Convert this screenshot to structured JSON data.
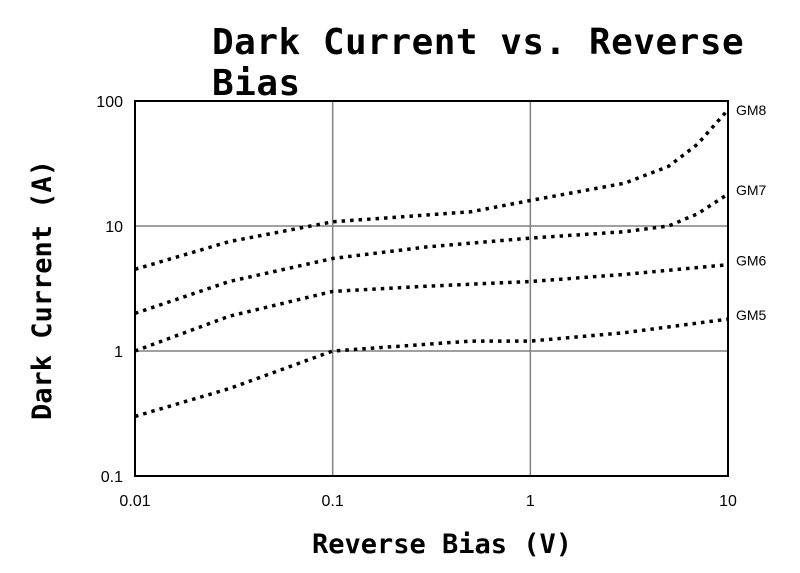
{
  "chart_data": {
    "type": "line",
    "title": "Dark Current vs. Reverse Bias",
    "xlabel": "Reverse Bias (V)",
    "ylabel": "Dark Current (A)",
    "xscale": "log",
    "yscale": "log",
    "xlim": [
      0.01,
      10
    ],
    "ylim": [
      0.1,
      100
    ],
    "grid": true,
    "line_style": "dotted",
    "x_ticks": [
      "0.01",
      "0.1",
      "1",
      "10"
    ],
    "y_ticks": [
      "0.1",
      "1",
      "10",
      "100"
    ],
    "series": [
      {
        "name": "GM8",
        "x": [
          0.01,
          0.03,
          0.1,
          0.5,
          1,
          3,
          5,
          7,
          10
        ],
        "y": [
          4.5,
          7.5,
          10.8,
          13,
          16,
          22,
          30,
          45,
          85
        ]
      },
      {
        "name": "GM7",
        "x": [
          0.01,
          0.03,
          0.1,
          0.3,
          1,
          3,
          5,
          7,
          10
        ],
        "y": [
          2.0,
          3.6,
          5.5,
          6.8,
          8.0,
          9.0,
          10.0,
          12.5,
          18
        ]
      },
      {
        "name": "GM6",
        "x": [
          0.01,
          0.03,
          0.1,
          0.3,
          1,
          3,
          10
        ],
        "y": [
          1.0,
          1.9,
          3.0,
          3.3,
          3.6,
          4.1,
          4.9
        ]
      },
      {
        "name": "GM5",
        "x": [
          0.01,
          0.03,
          0.1,
          0.5,
          1,
          3,
          10
        ],
        "y": [
          0.3,
          0.5,
          1.0,
          1.2,
          1.2,
          1.4,
          1.8
        ]
      }
    ]
  }
}
